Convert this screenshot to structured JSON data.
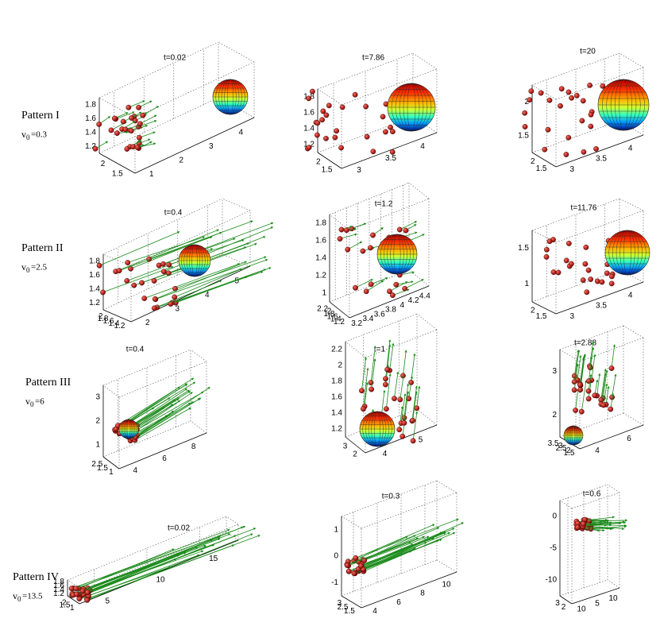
{
  "rows": [
    {
      "pattern": "Pattern I",
      "velocity_symbol": "v",
      "velocity_subscript": "0",
      "velocity_value": "=0.3"
    },
    {
      "pattern": "Pattern II",
      "velocity_symbol": "v",
      "velocity_subscript": "0",
      "velocity_value": "=2.5"
    },
    {
      "pattern": "Pattern III",
      "velocity_symbol": "v",
      "velocity_subscript": "0",
      "velocity_value": "=6"
    },
    {
      "pattern": "Pattern IV",
      "velocity_symbol": "v",
      "velocity_subscript": "0",
      "velocity_value": "=13.5"
    }
  ],
  "panels": [
    {
      "title": "t=0.02",
      "zticks": [
        "1.8",
        "1.6",
        "1.4",
        "1.2"
      ],
      "yticks": [
        "2",
        "1.5"
      ],
      "xticks": [
        "1",
        "2",
        "3",
        "4"
      ]
    },
    {
      "title": "t=7.86",
      "zticks": [
        "1.8",
        "1.6",
        "1.4",
        "1.2"
      ],
      "yticks": [
        "2",
        "1.5"
      ],
      "xticks": [
        "3",
        "3.5",
        "4"
      ]
    },
    {
      "title": "t=20",
      "zticks": [
        "2",
        "1.5"
      ],
      "yticks": [
        "2",
        "1.5"
      ],
      "xticks": [
        "3",
        "3.5",
        "4"
      ]
    },
    {
      "title": "t=0.4",
      "zticks": [
        "1.8",
        "1.6",
        "1.4",
        "1.2"
      ],
      "yticks": [
        "2",
        "1.8",
        "1.6",
        "1.4",
        "1.2"
      ],
      "xticks": [
        "2",
        "3",
        "4",
        "5"
      ]
    },
    {
      "title": "t=1.2",
      "zticks": [
        "1.8",
        "1.6",
        "1.4",
        "1.2",
        "1"
      ],
      "yticks": [
        "2.2",
        "2",
        "1.8",
        "1.6",
        "1.4",
        "1.2"
      ],
      "xticks": [
        "3.2",
        "3.4",
        "3.6",
        "3.8",
        "4",
        "4.2",
        "4.4"
      ]
    },
    {
      "title": "t=11.76",
      "zticks": [
        "1.5",
        "1"
      ],
      "yticks": [
        "2",
        "1.5"
      ],
      "xticks": [
        "3",
        "3.5",
        "4"
      ]
    },
    {
      "title": "t=0.4",
      "zticks": [
        "3",
        "2",
        "1"
      ],
      "yticks": [
        "2.5",
        "1.5",
        "1"
      ],
      "xticks": [
        "4",
        "6",
        "8"
      ]
    },
    {
      "title": "t=1",
      "zticks": [
        "2.2",
        "2",
        "1.8",
        "1.6",
        "1.4",
        "1.2"
      ],
      "yticks": [
        "3",
        "2"
      ],
      "xticks": [
        "4",
        "5"
      ]
    },
    {
      "title": "t=2.88",
      "zticks": [
        "3",
        "2"
      ],
      "yticks": [
        "3.5",
        "3",
        "2.5",
        "2",
        "1.5"
      ],
      "xticks": [
        "4",
        "6"
      ]
    },
    {
      "title": "t=0.02",
      "zticks": [
        "1.8",
        "1.6",
        "1.4",
        "1.2"
      ],
      "yticks": [
        "2",
        "1.5",
        "1"
      ],
      "xticks": [
        "5",
        "10",
        "15"
      ]
    },
    {
      "title": "t=0.3",
      "zticks": [
        "1",
        "0",
        "-1"
      ],
      "yticks": [
        "3",
        "2.5",
        "1.5"
      ],
      "xticks": [
        "4",
        "6",
        "8",
        "10"
      ]
    },
    {
      "title": "t=0.6",
      "zticks": [
        "0",
        "-5",
        "-10"
      ],
      "yticks": [
        "3",
        "2"
      ],
      "xticks": [
        "10",
        "5",
        "10"
      ]
    }
  ]
}
